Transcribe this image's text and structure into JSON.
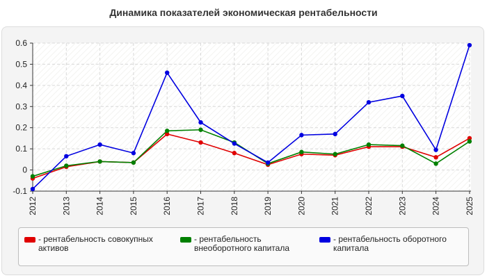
{
  "chart_data": {
    "type": "line",
    "title": "Динамика показателей экономическая рентабельности",
    "categories": [
      "2012",
      "2013",
      "2014",
      "2015",
      "2016",
      "2017",
      "2018",
      "2019",
      "2020",
      "2021",
      "2022",
      "2023",
      "2024",
      "2025"
    ],
    "ylim": [
      -0.1,
      0.6
    ],
    "yticks": [
      -0.1,
      0,
      0.1,
      0.2,
      0.3,
      0.4,
      0.5,
      0.6
    ],
    "ytick_labels": [
      "-0.1",
      "0",
      "0.1",
      "0.2",
      "0.3",
      "0.4",
      "0.5",
      "0.6"
    ],
    "grid": true,
    "legend_position": "bottom",
    "series": [
      {
        "name": "- рентабельность совокупных активов",
        "color": "#e00000",
        "values": [
          -0.04,
          0.015,
          0.04,
          0.035,
          0.17,
          0.13,
          0.08,
          0.025,
          0.075,
          0.07,
          0.11,
          0.11,
          0.06,
          0.15
        ]
      },
      {
        "name": "- рентабельность внеоборотного капитала",
        "color": "#008000",
        "values": [
          -0.03,
          0.02,
          0.04,
          0.035,
          0.185,
          0.19,
          0.13,
          0.03,
          0.085,
          0.075,
          0.12,
          0.115,
          0.03,
          0.135
        ]
      },
      {
        "name": "- рентабельность оборотного капитала",
        "color": "#0000e0",
        "values": [
          -0.09,
          0.065,
          0.12,
          0.08,
          0.46,
          0.225,
          0.125,
          0.035,
          0.165,
          0.17,
          0.32,
          0.35,
          0.095,
          0.59
        ]
      }
    ]
  }
}
